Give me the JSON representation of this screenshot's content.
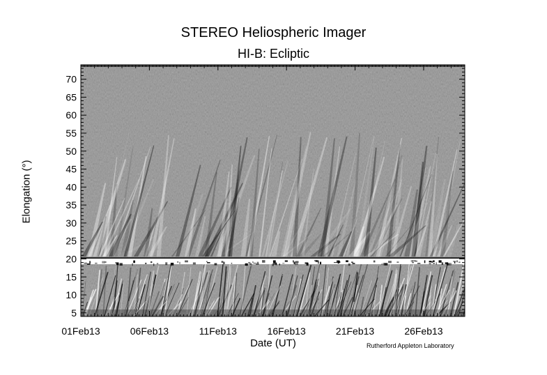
{
  "chart_data": {
    "type": "heatmap",
    "title": "STEREO Heliospheric Imager",
    "subtitle": "HI-B: Ecliptic",
    "xlabel": "Date (UT)",
    "ylabel": "Elongation (°)",
    "x_tick_labels": [
      "01Feb13",
      "06Feb13",
      "11Feb13",
      "16Feb13",
      "21Feb13",
      "26Feb13"
    ],
    "x_tick_days": [
      0,
      5,
      10,
      15,
      20,
      25
    ],
    "xlim_days": [
      0,
      28
    ],
    "y_ticks": [
      5,
      10,
      15,
      20,
      25,
      30,
      35,
      40,
      45,
      50,
      55,
      60,
      65,
      70
    ],
    "ylim": [
      4,
      74
    ],
    "colormap": "grayscale",
    "detector_boundary_elongation": 19.5,
    "colors": {
      "background": "#ffffff",
      "plot_gray": "#8a8a8a",
      "axis": "#000000"
    }
  },
  "footer": {
    "credit": "Rutherford Appleton Laboratory"
  }
}
